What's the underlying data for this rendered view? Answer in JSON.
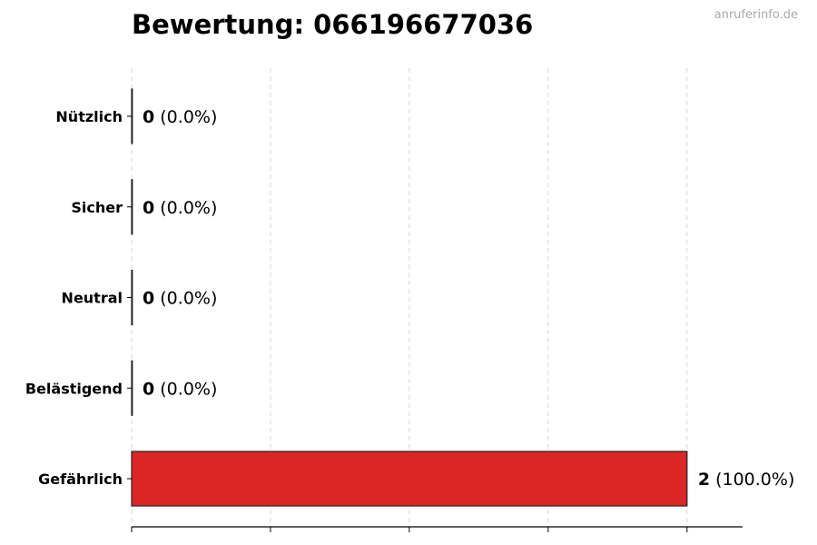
{
  "watermark": "anruferinfo.de",
  "chart_data": {
    "type": "bar",
    "orientation": "horizontal",
    "title": "Bewertung: 066196677036",
    "categories": [
      "Nützlich",
      "Sicher",
      "Neutral",
      "Belästigend",
      "Gefährlich"
    ],
    "values": [
      0,
      0,
      0,
      0,
      2
    ],
    "data_labels": [
      {
        "count": "0",
        "percent": "(0.0%)"
      },
      {
        "count": "0",
        "percent": "(0.0%)"
      },
      {
        "count": "0",
        "percent": "(0.0%)"
      },
      {
        "count": "0",
        "percent": "(0.0%)"
      },
      {
        "count": "2",
        "percent": "(100.0%)"
      }
    ],
    "bar_color": "#dc2626",
    "xlim": [
      0,
      2.2
    ],
    "x_gridlines": [
      0,
      0.5,
      1,
      1.5,
      2
    ],
    "grid": true,
    "xlabel": "",
    "ylabel": ""
  }
}
